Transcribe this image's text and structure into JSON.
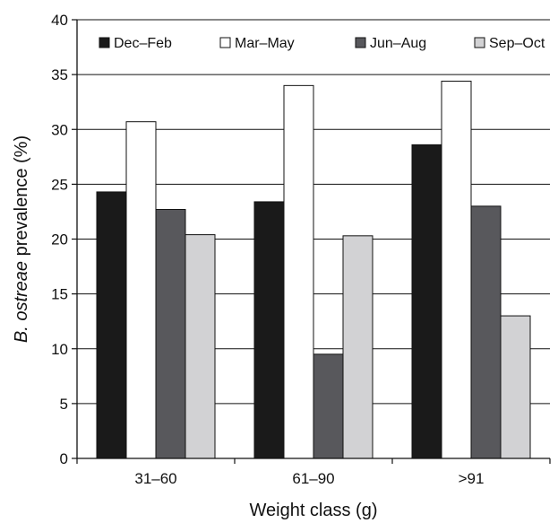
{
  "chart_data": {
    "type": "bar",
    "categories": [
      "31–60",
      "61–90",
      ">91"
    ],
    "series": [
      {
        "name": "Dec–Feb",
        "values": [
          24.3,
          23.4,
          28.6
        ],
        "color": "#1a1a1a"
      },
      {
        "name": "Mar–May",
        "values": [
          30.7,
          34.0,
          34.4
        ],
        "color": "#ffffff"
      },
      {
        "name": "Jun–Aug",
        "values": [
          22.7,
          9.5,
          23.0
        ],
        "color": "#58585c"
      },
      {
        "name": "Sep–Oct",
        "values": [
          20.4,
          20.3,
          13.0
        ],
        "color": "#d2d2d4"
      }
    ],
    "xlabel": "Weight class (g)",
    "ylabel_italic": "B. ostreae",
    "ylabel_rest": " prevalence (%)",
    "ylim": [
      0,
      40
    ],
    "yticks": [
      0,
      5,
      10,
      15,
      20,
      25,
      30,
      35,
      40
    ],
    "grid": true,
    "legend_position": "top-inside"
  }
}
